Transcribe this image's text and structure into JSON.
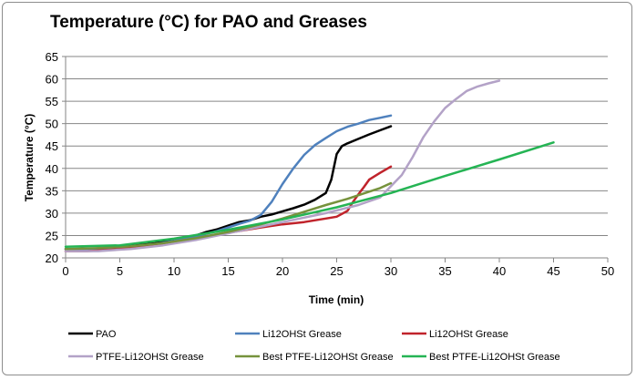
{
  "chart_data": {
    "type": "line",
    "title": "Temperature (°C) for PAO and Greases",
    "xlabel": "Time (min)",
    "ylabel": "Temperature (°C)",
    "xlim": [
      0,
      50
    ],
    "ylim": [
      20,
      65
    ],
    "x_ticks": [
      0,
      5,
      10,
      15,
      20,
      25,
      30,
      35,
      40,
      45,
      50
    ],
    "y_ticks": [
      20,
      25,
      30,
      35,
      40,
      45,
      50,
      55,
      60,
      65
    ],
    "grid": "horizontal",
    "legend_position": "bottom",
    "series": [
      {
        "name": "PAO",
        "color": "#000000",
        "x": [
          0,
          2,
          4,
          6,
          8,
          10,
          12,
          13,
          14,
          15,
          16,
          17,
          18,
          19,
          20,
          21,
          22,
          23,
          24,
          24.5,
          25,
          25.5,
          26,
          27,
          28,
          29,
          30
        ],
        "y": [
          22.0,
          22.0,
          22.3,
          22.7,
          23.2,
          24.0,
          25.0,
          25.8,
          26.4,
          27.2,
          28.0,
          28.4,
          29.2,
          29.7,
          30.4,
          31.1,
          31.9,
          33.0,
          34.5,
          37.5,
          43.2,
          45.0,
          45.6,
          46.6,
          47.6,
          48.5,
          49.4
        ]
      },
      {
        "name": "Li12OHSt Grease",
        "color": "#4f81bd",
        "x": [
          0,
          2,
          4,
          6,
          8,
          10,
          12,
          14,
          15,
          16,
          17,
          18,
          19,
          20,
          21,
          22,
          23,
          24,
          25,
          26,
          27,
          28,
          29,
          30
        ],
        "y": [
          22.0,
          22.0,
          22.2,
          22.5,
          23.0,
          23.8,
          24.8,
          26.0,
          26.8,
          27.6,
          28.3,
          29.6,
          32.5,
          36.5,
          40.0,
          43.0,
          45.2,
          46.8,
          48.3,
          49.3,
          50.0,
          50.8,
          51.3,
          51.8
        ]
      },
      {
        "name": "Li12OHSt Grease",
        "color": "#c0232b",
        "x": [
          0,
          2,
          4,
          6,
          8,
          10,
          12,
          14,
          16,
          18,
          20,
          22,
          24,
          25,
          26,
          26.5,
          27,
          27.5,
          28,
          29,
          30
        ],
        "y": [
          21.5,
          21.5,
          21.8,
          22.2,
          22.8,
          23.5,
          24.3,
          25.2,
          26.0,
          26.8,
          27.5,
          28.0,
          28.8,
          29.2,
          30.5,
          32.5,
          34.2,
          35.8,
          37.5,
          39.0,
          40.4
        ]
      },
      {
        "name": "PTFE-Li12OHSt Grease",
        "color": "#b3a2c7",
        "x": [
          0,
          3,
          6,
          9,
          12,
          15,
          18,
          21,
          24,
          27,
          29,
          30,
          31,
          32,
          33,
          34,
          35,
          36,
          37,
          38,
          39,
          40
        ],
        "y": [
          21.5,
          21.5,
          22.0,
          22.8,
          24.0,
          25.5,
          27.0,
          28.5,
          30.0,
          31.8,
          33.5,
          36.0,
          38.5,
          42.5,
          47.0,
          50.5,
          53.5,
          55.5,
          57.3,
          58.3,
          59.0,
          59.6
        ]
      },
      {
        "name": "Best PTFE-Li12OHSt Grease",
        "color": "#76923c",
        "x": [
          0,
          3,
          6,
          9,
          12,
          15,
          18,
          20,
          22,
          24,
          26,
          28,
          29,
          30
        ],
        "y": [
          22.0,
          22.2,
          22.6,
          23.3,
          24.4,
          25.8,
          27.5,
          28.8,
          30.3,
          31.8,
          33.2,
          34.8,
          35.6,
          36.7
        ]
      },
      {
        "name": "Best PTFE-Li12OHSt Grease",
        "color": "#25b454",
        "x": [
          0,
          5,
          10,
          15,
          20,
          25,
          30,
          35,
          40,
          45
        ],
        "y": [
          22.5,
          22.8,
          24.3,
          26.3,
          28.6,
          31.3,
          34.5,
          38.3,
          42.0,
          45.8
        ]
      }
    ]
  }
}
